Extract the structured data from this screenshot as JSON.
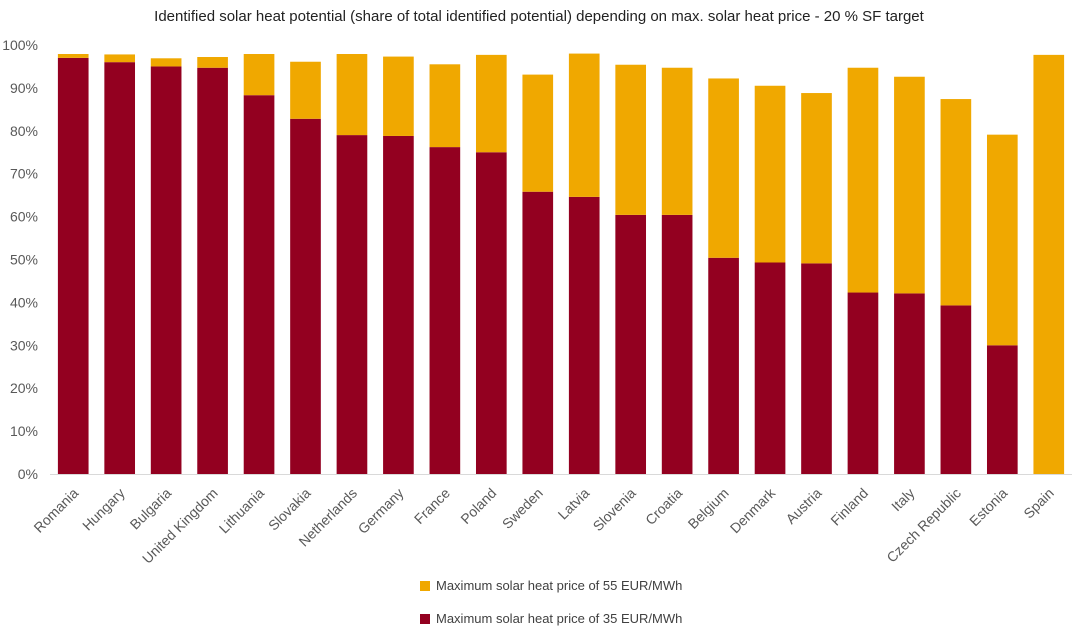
{
  "chart_data": {
    "type": "bar",
    "stacked": true,
    "title": "Identified solar heat potential (share of total identified potential) depending on max. solar heat price - 20 % SF target",
    "xlabel": "",
    "ylabel": "",
    "ylim": [
      0,
      100
    ],
    "y_ticks": [
      "0%",
      "10%",
      "20%",
      "30%",
      "40%",
      "50%",
      "60%",
      "70%",
      "80%",
      "90%",
      "100%"
    ],
    "grid": false,
    "legend_position": "bottom",
    "categories": [
      "Romania",
      "Hungary",
      "Bulgaria",
      "United Kingdom",
      "Lithuania",
      "Slovakia",
      "Netherlands",
      "Germany",
      "France",
      "Poland",
      "Sweden",
      "Latvia",
      "Slovenia",
      "Croatia",
      "Belgium",
      "Denmark",
      "Austria",
      "Finland",
      "Italy",
      "Czech Republic",
      "Estonia",
      "Spain"
    ],
    "series": [
      {
        "name": "Maximum solar heat price of 35 EUR/MWh",
        "color": "#930020",
        "values": [
          97,
          96,
          95,
          94.7,
          88.3,
          82.8,
          79,
          78.8,
          76.2,
          75,
          65.8,
          64.6,
          60.4,
          60.4,
          50.4,
          49.3,
          49.1,
          42.3,
          42.1,
          39.3,
          30,
          0
        ]
      },
      {
        "name": "Maximum solar heat price of 55 EUR/MWh",
        "color": "#F0A800",
        "values": [
          0.9,
          1.8,
          1.9,
          2.5,
          9.6,
          13.3,
          18.9,
          18.5,
          19.3,
          22.7,
          27.3,
          33.4,
          35,
          34.3,
          41.8,
          41.2,
          39.7,
          52.4,
          50.5,
          48.1,
          49.1,
          97.7
        ]
      }
    ]
  }
}
